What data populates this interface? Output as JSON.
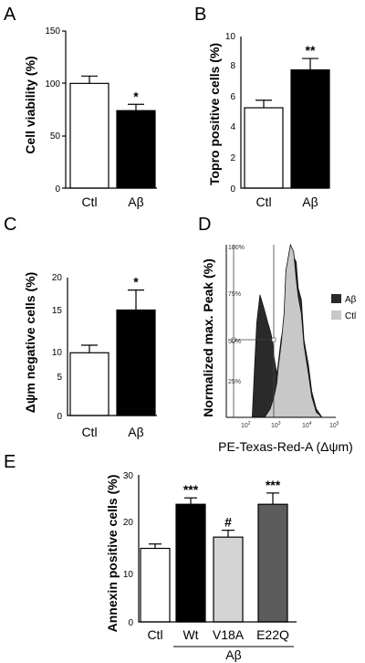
{
  "chart_data": [
    {
      "panel": "A",
      "type": "bar",
      "ylabel": "Cell viability (%)",
      "ylim": [
        0,
        150
      ],
      "yticks": [
        "0",
        "50",
        "100",
        "150"
      ],
      "categories": [
        "Ctl",
        "Aβ"
      ],
      "values": [
        100,
        74
      ],
      "errors": [
        7,
        6
      ],
      "colors": [
        "#ffffff",
        "#000000"
      ],
      "significance": [
        "",
        "*"
      ]
    },
    {
      "panel": "B",
      "type": "bar",
      "ylabel": "Topro positive cells (%)",
      "ylim": [
        0,
        10
      ],
      "yticks": [
        "0",
        "2",
        "4",
        "6",
        "8",
        "10"
      ],
      "categories": [
        "Ctl",
        "Aβ"
      ],
      "values": [
        5.3,
        7.8
      ],
      "errors": [
        0.5,
        0.75
      ],
      "colors": [
        "#ffffff",
        "#000000"
      ],
      "significance": [
        "",
        "**"
      ]
    },
    {
      "panel": "C",
      "type": "bar",
      "ylabel": "Δψm negative cells  (%)",
      "ylim": [
        0,
        20
      ],
      "yticks": [
        "0",
        "5",
        "10",
        "15",
        "20"
      ],
      "categories": [
        "Ctl",
        "Aβ"
      ],
      "values": [
        9.1,
        15.3
      ],
      "errors": [
        1.1,
        2.9
      ],
      "colors": [
        "#ffffff",
        "#000000"
      ],
      "significance": [
        "",
        "*"
      ]
    },
    {
      "panel": "D",
      "type": "area",
      "ylabel": "Normalized max. Peak (%)",
      "xlabel": "PE-Texas-Red-A (Δψm)",
      "yticks": [
        "25%",
        "50%",
        "75%",
        "100%"
      ],
      "xticks": [
        "10",
        "10",
        "10",
        "10"
      ],
      "xtick_exponents": [
        "2",
        "3",
        "4",
        "5"
      ],
      "xscale": "log",
      "xlim": [
        10,
        200000
      ],
      "ylim": [
        0,
        100
      ],
      "legend_position": "right",
      "series": [
        {
          "name": "Aβ",
          "color": "#2a2a2a",
          "x": [
            100,
            120,
            150,
            200,
            300,
            400,
            500,
            600,
            700,
            900,
            1000,
            1300,
            1700,
            2000,
            3000,
            4000,
            5000,
            6000,
            8000,
            10000,
            15000,
            20000,
            30000,
            50000
          ],
          "y": [
            0,
            25,
            55,
            71,
            62,
            55,
            50,
            45,
            35,
            25,
            30,
            45,
            55,
            80,
            96,
            93,
            90,
            75,
            68,
            45,
            30,
            15,
            5,
            0
          ]
        },
        {
          "name": "Ctl",
          "color": "#c8c8c8",
          "x": [
            300,
            500,
            700,
            900,
            1000,
            1300,
            1700,
            2000,
            3000,
            4000,
            5000,
            6000,
            8000,
            10000,
            15000,
            20000,
            30000,
            50000
          ],
          "y": [
            0,
            5,
            12,
            20,
            28,
            42,
            60,
            85,
            100,
            96,
            80,
            70,
            60,
            42,
            25,
            12,
            3,
            0
          ]
        }
      ]
    },
    {
      "panel": "E",
      "type": "bar",
      "ylabel": "Annexin positive cells (%)",
      "ylim": [
        0,
        30
      ],
      "yticks": [
        "0",
        "10",
        "20",
        "30"
      ],
      "categories": [
        "Ctl",
        "Wt",
        "V18A",
        "E22Q"
      ],
      "group_label": "Aβ",
      "values": [
        15,
        24,
        17.3,
        24
      ],
      "errors": [
        0.9,
        1.3,
        1.4,
        2.3
      ],
      "colors": [
        "#ffffff",
        "#000000",
        "#d4d4d4",
        "#5c5c5c"
      ],
      "significance": [
        "",
        "***",
        "#",
        "***"
      ]
    }
  ]
}
